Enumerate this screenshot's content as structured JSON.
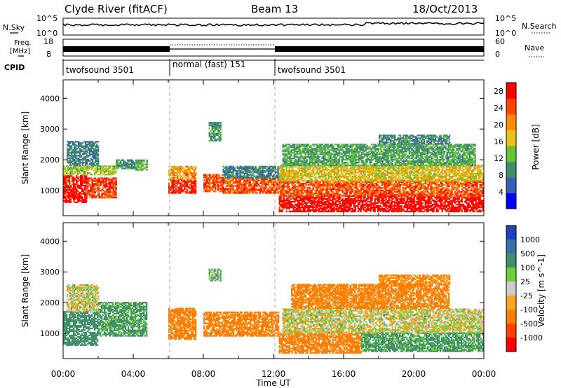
{
  "header": {
    "station": "Clyde River (fitACF)",
    "beam": "Beam 13",
    "date": "18/Oct/2013"
  },
  "noise_panel": {
    "left_label": "N.Sky",
    "left_ticks": [
      "10^5",
      "10^0"
    ],
    "right_ticks": [
      "10^5",
      "10^0"
    ],
    "right_label": "N.Search"
  },
  "freq_panel": {
    "left_label_line1": "Freq.",
    "left_label_line2": "[MHz]",
    "left_ticks": [
      "18",
      "8"
    ],
    "right_ticks": [
      "60",
      "0"
    ],
    "right_label": "Nave"
  },
  "cpid": {
    "label": "CPID",
    "segments": [
      {
        "name": "twofsound 3501",
        "start_h": 0,
        "end_h": 6
      },
      {
        "name": "normal (fast) 151",
        "start_h": 6,
        "end_h": 12
      },
      {
        "name": "twofsound 3501",
        "start_h": 12,
        "end_h": 24
      }
    ]
  },
  "time_axis": {
    "ticks": [
      "00:00",
      "04:00",
      "08:00",
      "12:00",
      "16:00",
      "20:00",
      "00:00"
    ],
    "xlabel": "Time UT"
  },
  "chart_data": [
    {
      "type": "heatmap",
      "title": "Power",
      "xlabel": "Time UT",
      "ylabel": "Slant Range [km]",
      "xlim_hours": [
        0,
        24
      ],
      "ylim_km": [
        180,
        4600
      ],
      "y_ticks": [
        1000,
        2000,
        3000,
        4000
      ],
      "colorbar": {
        "label": "Power [dB]",
        "ticks": [
          4,
          8,
          12,
          16,
          20,
          24,
          28
        ],
        "range": [
          0,
          30
        ],
        "colors": [
          "#0000ff",
          "#3a5fb0",
          "#3f8f6a",
          "#66c33a",
          "#e8c21a",
          "#ff8c00",
          "#ff4500",
          "#ff0000"
        ]
      },
      "echo_regions": [
        {
          "t0": 0.0,
          "t1": 1.3,
          "r0": 600,
          "r1": 1500,
          "v": 28
        },
        {
          "t0": 1.3,
          "t1": 3.0,
          "r0": 750,
          "r1": 1400,
          "v": 25
        },
        {
          "t0": 0.0,
          "t1": 3.0,
          "r0": 1500,
          "r1": 1800,
          "v": 14
        },
        {
          "t0": 0.2,
          "t1": 2.0,
          "r0": 1800,
          "r1": 2600,
          "v": 8
        },
        {
          "t0": 3.0,
          "t1": 4.1,
          "r0": 1700,
          "r1": 2000,
          "v": 10
        },
        {
          "t0": 4.1,
          "t1": 4.8,
          "r0": 1650,
          "r1": 2000,
          "v": 12
        },
        {
          "t0": 6.0,
          "t1": 7.6,
          "r0": 900,
          "r1": 1350,
          "v": 27
        },
        {
          "t0": 6.0,
          "t1": 7.6,
          "r0": 1350,
          "r1": 1800,
          "v": 20
        },
        {
          "t0": 8.0,
          "t1": 9.1,
          "r0": 950,
          "r1": 1500,
          "v": 24
        },
        {
          "t0": 8.3,
          "t1": 9.0,
          "r0": 2600,
          "r1": 3200,
          "v": 10
        },
        {
          "t0": 9.1,
          "t1": 12.3,
          "r0": 900,
          "r1": 1400,
          "v": 24
        },
        {
          "t0": 9.1,
          "t1": 12.3,
          "r0": 1400,
          "r1": 1800,
          "v": 8
        },
        {
          "t0": 12.3,
          "t1": 24.0,
          "r0": 300,
          "r1": 800,
          "v": 29
        },
        {
          "t0": 12.3,
          "t1": 24.0,
          "r0": 800,
          "r1": 1300,
          "v": 24
        },
        {
          "t0": 12.3,
          "t1": 24.0,
          "r0": 1300,
          "r1": 1800,
          "v": 17
        },
        {
          "t0": 12.5,
          "t1": 23.5,
          "r0": 1800,
          "r1": 2500,
          "v": 11
        },
        {
          "t0": 18.0,
          "t1": 22.0,
          "r0": 2500,
          "r1": 2800,
          "v": 9
        }
      ]
    },
    {
      "type": "heatmap",
      "title": "Velocity",
      "xlabel": "Time UT",
      "ylabel": "Slant Range [km]",
      "xlim_hours": [
        0,
        24
      ],
      "ylim_km": [
        180,
        4600
      ],
      "y_ticks": [
        1000,
        2000,
        3000,
        4000
      ],
      "colorbar": {
        "label": "Velocity [m s^-1]",
        "ticks": [
          1000,
          500,
          100,
          25,
          -25,
          -100,
          -500,
          -1000
        ],
        "colors": [
          "#2040c0",
          "#3a6fa8",
          "#3f8f6a",
          "#6ccf3a",
          "#cccccc",
          "#f5a623",
          "#ff7f00",
          "#ff4000",
          "#ff0000"
        ]
      },
      "echo_regions": [
        {
          "t0": 0.0,
          "t1": 2.0,
          "r0": 600,
          "r1": 1700,
          "v": 300
        },
        {
          "t0": 0.2,
          "t1": 2.0,
          "r0": 1700,
          "r1": 2600,
          "v": 0
        },
        {
          "t0": 2.0,
          "t1": 4.8,
          "r0": 900,
          "r1": 2000,
          "v": 150
        },
        {
          "t0": 6.0,
          "t1": 7.6,
          "r0": 800,
          "r1": 1800,
          "v": -200
        },
        {
          "t0": 8.0,
          "t1": 12.3,
          "r0": 900,
          "r1": 1700,
          "v": -250
        },
        {
          "t0": 8.3,
          "t1": 9.0,
          "r0": 2700,
          "r1": 3100,
          "v": 80
        },
        {
          "t0": 12.3,
          "t1": 17.0,
          "r0": 350,
          "r1": 1000,
          "v": -250
        },
        {
          "t0": 17.0,
          "t1": 24.0,
          "r0": 400,
          "r1": 1000,
          "v": 150
        },
        {
          "t0": 12.5,
          "t1": 24.0,
          "r0": 1000,
          "r1": 1800,
          "v": 0
        },
        {
          "t0": 13.0,
          "t1": 22.0,
          "r0": 1800,
          "r1": 2600,
          "v": -200
        },
        {
          "t0": 18.0,
          "t1": 22.0,
          "r0": 2600,
          "r1": 2900,
          "v": -150
        }
      ]
    }
  ]
}
